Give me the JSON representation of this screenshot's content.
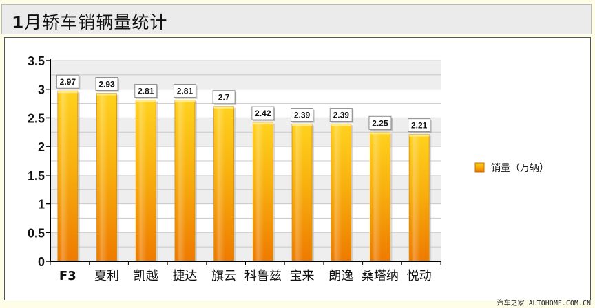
{
  "header": {
    "title_bold": "1",
    "title_rest": "月轿车销辆量统计"
  },
  "footer": {
    "watermark": "汽车之家 AUTOHOME.COM.CN"
  },
  "chart_data": {
    "type": "bar",
    "title": "1月轿车销辆量统计",
    "xlabel": "",
    "ylabel": "",
    "categories": [
      "F3",
      "夏利",
      "凯越",
      "捷达",
      "旗云",
      "科鲁兹",
      "宝来",
      "朗逸",
      "桑塔纳",
      "悦动"
    ],
    "series": [
      {
        "name": "销量（万辆）",
        "values": [
          2.97,
          2.93,
          2.81,
          2.81,
          2.7,
          2.42,
          2.39,
          2.39,
          2.25,
          2.21
        ]
      }
    ],
    "value_labels": [
      "2.97",
      "2.93",
      "2.81",
      "2.81",
      "2.7",
      "2.42",
      "2.39",
      "2.39",
      "2.25",
      "2.21"
    ],
    "ylim": [
      0,
      3.5
    ],
    "yticks": [
      0,
      0.5,
      1,
      1.5,
      2,
      2.5,
      3,
      3.5
    ],
    "ytick_labels": [
      "0",
      "0.5",
      "1",
      "1.5",
      "2",
      "2.5",
      "3",
      "3.5"
    ],
    "grid": true,
    "legend_position": "right",
    "colors": {
      "bar_top": "#ffd21e",
      "bar_bottom": "#ee7a00",
      "band": "#eeeeee",
      "grid": "#c8c8c8"
    }
  }
}
